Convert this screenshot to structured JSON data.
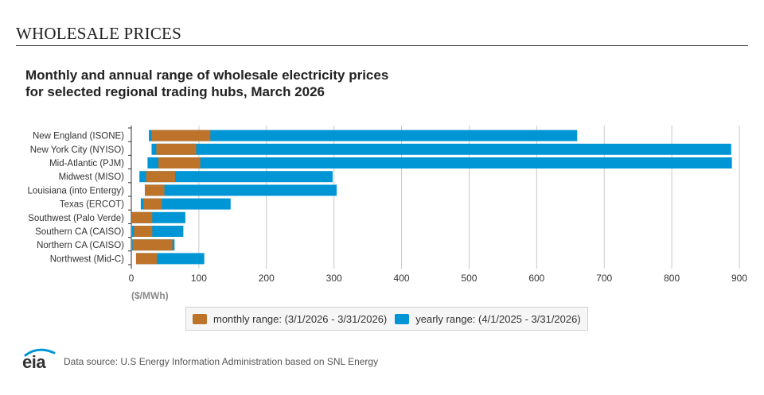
{
  "section_title": "WHOLESALE PRICES",
  "chart_data": {
    "type": "bar",
    "orientation": "horizontal",
    "title_line1": "Monthly and annual range of wholesale electricity prices",
    "title_line2": "for selected regional trading hubs, March 2026",
    "categories": [
      "New England (ISONE)",
      "New York City (NYISO)",
      "Mid-Atlantic (PJM)",
      "Midwest (MISO)",
      "Louisiana (into Entergy)",
      "Texas (ERCOT)",
      "Southwest (Palo Verde)",
      "Southern CA (CAISO)",
      "Northern CA (CAISO)",
      "Northwest (Mid-C)"
    ],
    "series": [
      {
        "name": "yearly range: (4/1/2025 - 3/31/2026)",
        "color": "#0096d6",
        "ranges": [
          [
            26,
            660
          ],
          [
            30,
            888
          ],
          [
            24,
            889
          ],
          [
            12,
            298
          ],
          [
            20,
            304
          ],
          [
            14,
            147
          ],
          [
            1,
            80
          ],
          [
            1,
            77
          ],
          [
            1,
            64
          ],
          [
            7,
            108
          ]
        ]
      },
      {
        "name": "monthly range: (3/1/2026 - 3/31/2026)",
        "color": "#bd732a",
        "ranges": [
          [
            30,
            117
          ],
          [
            37,
            96
          ],
          [
            40,
            102
          ],
          [
            22,
            65
          ],
          [
            20,
            49
          ],
          [
            18,
            45
          ],
          [
            1,
            31
          ],
          [
            4,
            31
          ],
          [
            2,
            61
          ],
          [
            7,
            38
          ]
        ]
      }
    ],
    "x_ticks": [
      0,
      100,
      200,
      300,
      400,
      500,
      600,
      700,
      800,
      900
    ],
    "xlim": [
      0,
      900
    ],
    "xlabel": "($/MWh)",
    "grid": true,
    "legend_position": "bottom"
  },
  "legend": {
    "monthly_label": "monthly range: (3/1/2026 - 3/31/2026)",
    "yearly_label": "yearly range: (4/1/2025 - 3/31/2026)",
    "monthly_color": "#bd732a",
    "yearly_color": "#0096d6"
  },
  "footer": {
    "logo_text": "eia",
    "source": "Data source: U.S Energy Information Administration based on SNL Energy"
  }
}
